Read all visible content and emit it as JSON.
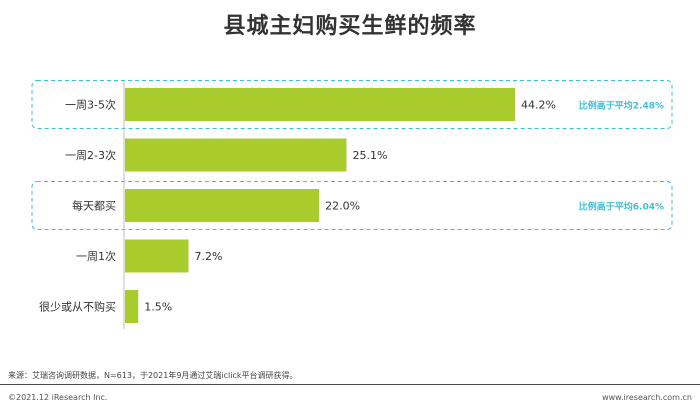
{
  "title": "县城主妇购买生鲜的频率",
  "chart_data": {
    "type": "bar",
    "orientation": "horizontal",
    "categories": [
      "一周3-5次",
      "一周2-3次",
      "每天都买",
      "一周1次",
      "很少或从不购买"
    ],
    "values": [
      44.2,
      25.1,
      22.0,
      7.2,
      1.5
    ],
    "value_labels": [
      "44.2%",
      "25.1%",
      "22.0%",
      "7.2%",
      "1.5%"
    ],
    "xlim": [
      0,
      100
    ],
    "grid": false,
    "legend": "none",
    "bar_color": "#A8CC2C",
    "highlights": [
      {
        "category_index": 0,
        "note": "比例高于平均2.48%"
      },
      {
        "category_index": 2,
        "note": "比例高于平均6.04%"
      }
    ],
    "highlight_color": "#3FBFD6"
  },
  "source": "来源：艾瑞咨询调研数据，N=613，于2021年9月通过艾瑞iclick平台调研获得。",
  "footer": {
    "copyright": "©2021.12 iResearch Inc.",
    "site": "www.iresearch.com.cn"
  }
}
